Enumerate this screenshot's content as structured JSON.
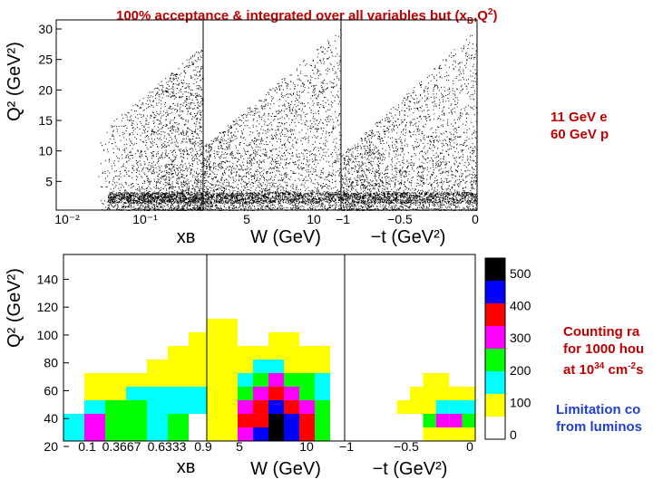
{
  "title": {
    "main": "100% acceptance & integrated over all variables but (x",
    "sub_b": "B",
    "mid": ",Q",
    "sup_2": "2",
    "end": ")"
  },
  "notes": {
    "beam_line1": "11 GeV e",
    "beam_line2": "60 GeV p",
    "rate_line1": "Counting ra",
    "rate_line2": "for 1000 hou",
    "rate_line3_a": "at 10",
    "rate_line3_sup": "34",
    "rate_line3_b": " cm",
    "rate_line3_sup2": "-2",
    "rate_line3_c": "s",
    "limit_line1": "Limitation co",
    "limit_line2": "from luminos"
  },
  "colors": {
    "title": "#c00000",
    "notes": "#c00000",
    "limitation": "#1f3fd0",
    "scale": [
      "#ffffff",
      "#ffff00",
      "#00ffff",
      "#00ff00",
      "#ff00ff",
      "#ff0000",
      "#0000ff",
      "#000000"
    ]
  },
  "chart_data": [
    {
      "type": "scatter",
      "panel": "top",
      "ylabel": "Q² (GeV²)",
      "yticks": [
        "30",
        "25",
        "20",
        "15",
        "10",
        "5"
      ],
      "ylim": [
        0,
        30
      ],
      "subpanels": [
        {
          "xlabel": "xʙ",
          "xticks": [
            "10⁻²",
            "10⁻¹"
          ],
          "x_scale": "log"
        },
        {
          "xlabel": "W (GeV)",
          "xticks": [
            "5",
            "10"
          ]
        },
        {
          "xlabel": "−t (GeV²)",
          "xticks": [
            "−1",
            "−0.5",
            "0"
          ]
        }
      ]
    },
    {
      "type": "heatmap",
      "panel": "bottom",
      "ylabel": "Q² (GeV²)",
      "yticks": [
        "140",
        "120",
        "100",
        "80",
        "60",
        "40",
        "20"
      ],
      "ylim": [
        20,
        150
      ],
      "scale_labels": [
        "500",
        "400",
        "300",
        "200",
        "100",
        "0"
      ],
      "scale_levels": [
        0,
        100,
        150,
        200,
        250,
        300,
        400,
        500
      ],
      "subpanels": [
        {
          "xlabel": "xʙ",
          "xticks": [
            "0.1",
            "0.3667",
            "0.6333",
            "0.9"
          ],
          "columns": [
            [
              190,
              160,
              80
            ],
            [
              280,
              250,
              190,
              130,
              110
            ],
            [
              240,
              240,
              240,
              140,
              110
            ],
            [
              210,
              210,
              210,
              160,
              110
            ],
            [
              190,
              190,
              190,
              180,
              130,
              110
            ],
            [
              200,
              200,
              190,
              180,
              130,
              120,
              110
            ],
            [
              80,
              80,
              160,
              170,
              130,
              120,
              110,
              110
            ],
            [
              80,
              80,
              120,
              120,
              120,
              110,
              110,
              110
            ]
          ]
        },
        {
          "xlabel": "W (GeV)",
          "xticks": [
            "5",
            "10"
          ],
          "columns": [
            [
              110,
              110,
              110,
              110,
              110,
              110,
              110,
              110,
              110
            ],
            [
              120,
              130,
              140,
              140,
              120,
              110,
              110,
              110,
              110
            ],
            [
              280,
              300,
              250,
              220,
              190,
              140,
              110
            ],
            [
              450,
              350,
              320,
              260,
              220,
              150,
              110
            ],
            [
              520,
              520,
              420,
              300,
              260,
              160,
              110,
              110
            ],
            [
              450,
              420,
              350,
              280,
              220,
              140,
              110,
              110
            ],
            [
              310,
              300,
              270,
              240,
              200,
              130,
              110
            ],
            [
              220,
              220,
              200,
              180,
              150,
              120,
              110
            ]
          ]
        },
        {
          "xlabel": "−t (GeV²)",
          "xticks": [
            "−1",
            "−0.5",
            "0"
          ],
          "columns": [
            [
              0,
              0,
              0,
              0
            ],
            [
              0,
              0,
              0,
              0
            ],
            [
              0,
              0,
              0,
              0
            ],
            [
              0,
              0,
              0,
              0
            ],
            [
              0,
              0,
              110
            ],
            [
              0,
              0,
              130,
              110
            ],
            [
              110,
              220,
              130,
              110,
              110
            ],
            [
              110,
              250,
              180,
              120,
              110
            ],
            [
              110,
              250,
              180,
              120
            ],
            [
              110,
              220,
              170,
              110
            ]
          ]
        }
      ]
    }
  ]
}
